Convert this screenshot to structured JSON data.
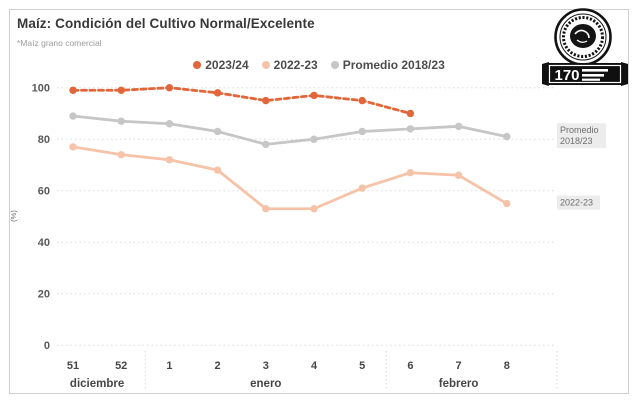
{
  "card": {
    "title": "Maíz: Condición del Cultivo Normal/Excelente",
    "subtitle": "*Maíz grano comercial",
    "border_color": "#cfcfcf"
  },
  "legend": {
    "items": [
      {
        "label": "2023/24",
        "color": "#e2663a"
      },
      {
        "label": "2022-23",
        "color": "#f6c3a9"
      },
      {
        "label": "Promedio 2018/23",
        "color": "#c6c6c6"
      }
    ]
  },
  "logo": {
    "banner_text": "170"
  },
  "chart_data": {
    "type": "line",
    "title": "Maíz: Condición del Cultivo Normal/Excelente",
    "ylabel": "(%)",
    "ylim": [
      0,
      100
    ],
    "yticks": [
      0,
      20,
      40,
      60,
      80,
      100
    ],
    "grid": "dotted-horizontal",
    "legend_position": "top",
    "x_week_labels": [
      "51",
      "52",
      "1",
      "2",
      "3",
      "4",
      "5",
      "6",
      "7",
      "8"
    ],
    "month_groups": [
      {
        "label": "diciembre",
        "from_index": 0,
        "to_index": 1
      },
      {
        "label": "enero",
        "from_index": 2,
        "to_index": 6
      },
      {
        "label": "febrero",
        "from_index": 7,
        "to_index": 9
      }
    ],
    "series": [
      {
        "name": "2023/24",
        "color": "#e2663a",
        "dashed": true,
        "values": [
          99,
          99,
          100,
          98,
          95,
          97,
          95,
          90,
          null,
          null
        ]
      },
      {
        "name": "2022-23",
        "color": "#f6c3a9",
        "dashed": false,
        "values": [
          77,
          74,
          72,
          68,
          53,
          53,
          61,
          67,
          66,
          55
        ]
      },
      {
        "name": "Promedio 2018/23",
        "color": "#c6c6c6",
        "dashed": false,
        "values": [
          89,
          87,
          86,
          83,
          78,
          80,
          83,
          84,
          85,
          81
        ]
      }
    ],
    "right_line_labels": [
      {
        "series": "Promedio 2018/23",
        "lines": [
          "Promedio",
          "2018/23"
        ]
      },
      {
        "series": "2022-23",
        "lines": [
          "2022-23"
        ]
      }
    ]
  }
}
